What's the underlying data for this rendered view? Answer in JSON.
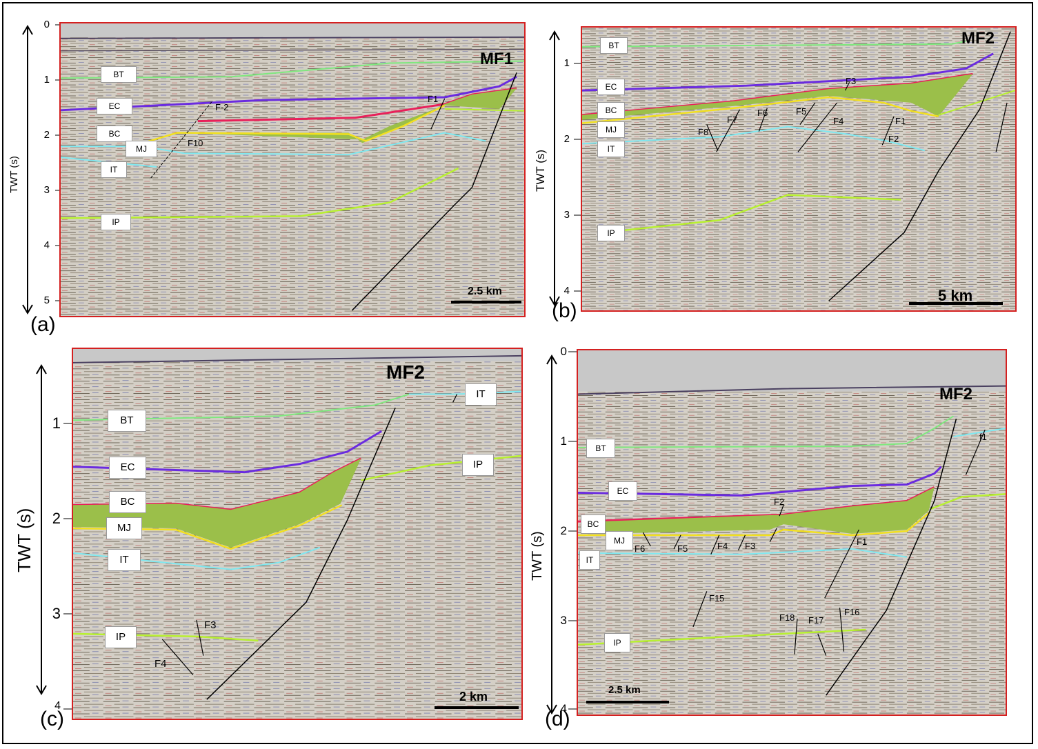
{
  "axis_title": "TWT (s)",
  "panels": {
    "a": {
      "letter": "(a)",
      "ticks": [
        "0",
        "1",
        "2",
        "3",
        "4",
        "5"
      ],
      "horizons": {
        "bt": "BT",
        "ec": "EC",
        "bc": "BC",
        "mj": "MJ",
        "it": "IT",
        "ip": "IP"
      },
      "main_fault": "MF1",
      "faults": [
        "F-2",
        "F10",
        "F1"
      ],
      "scale": "2.5 km"
    },
    "b": {
      "letter": "(b)",
      "ticks": [
        "1",
        "2",
        "3",
        "4"
      ],
      "horizons": {
        "bt": "BT",
        "ec": "EC",
        "bc": "BC",
        "mj": "MJ",
        "it": "IT",
        "ip": "IP"
      },
      "main_fault": "MF2",
      "faults": [
        "F3",
        "F7",
        "F6",
        "F5",
        "F8",
        "F4",
        "F1",
        "F2"
      ],
      "scale": "5 km"
    },
    "c": {
      "letter": "(c)",
      "ticks": [
        "1",
        "2",
        "3",
        "4"
      ],
      "horizons": {
        "bt": "BT",
        "ec": "EC",
        "bc": "BC",
        "mj": "MJ",
        "it": "IT",
        "ip": "IP",
        "it2": "IT",
        "ip2": "IP"
      },
      "main_fault": "MF2",
      "faults": [
        "F3",
        "F4"
      ],
      "scale": "2 km"
    },
    "d": {
      "letter": "(d)",
      "ticks": [
        "0",
        "1",
        "2",
        "3",
        "4"
      ],
      "horizons": {
        "bt": "BT",
        "ec": "EC",
        "bc": "BC",
        "mj": "MJ",
        "it": "IT",
        "ip": "IP"
      },
      "main_fault": "MF2",
      "faults": [
        "f1",
        "F2",
        "F6",
        "F5",
        "F4",
        "F3",
        "F1",
        "F15",
        "F18",
        "F17",
        "F16"
      ],
      "scale": "2.5 km"
    }
  },
  "colors": {
    "bt": "#7fe87f",
    "ec": "#6a2be0",
    "bc": "#e8205a",
    "mj": "#f2e020",
    "it": "#7fe8f0",
    "ip": "#b8f030",
    "fill": "#9bbf4a",
    "fault": "#000000",
    "border": "#d42020"
  }
}
